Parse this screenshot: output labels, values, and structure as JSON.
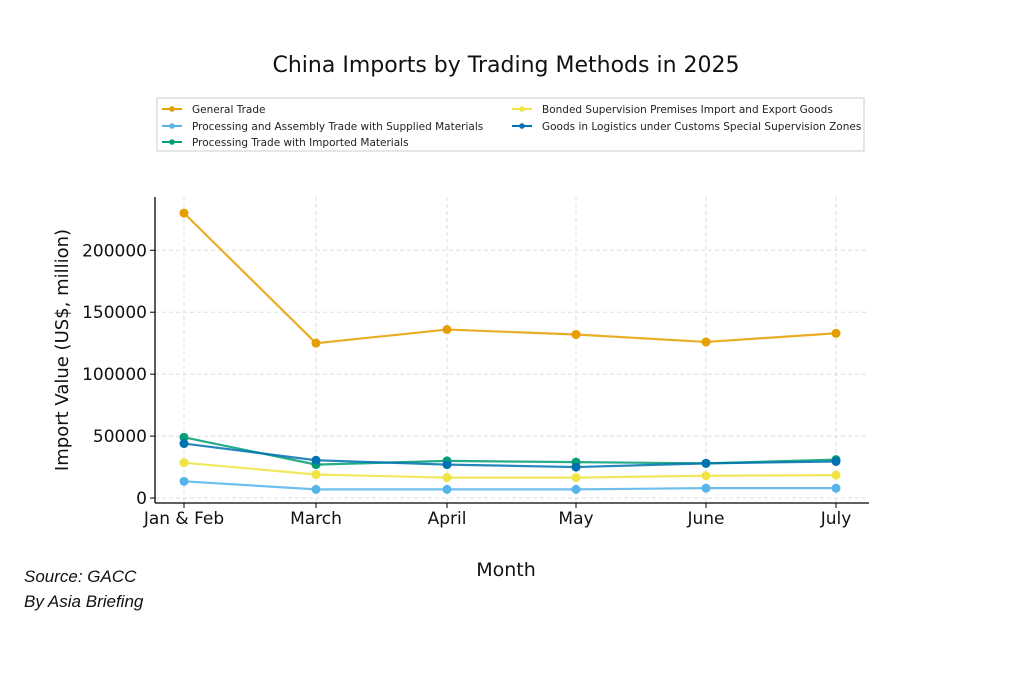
{
  "chart_data": {
    "type": "line",
    "title": "China Imports by Trading Methods in 2025",
    "xlabel": "Month",
    "ylabel": "Import Value (US$, million)",
    "categories": [
      "Jan & Feb",
      "March",
      "April",
      "May",
      "June",
      "July"
    ],
    "yticks": [
      0,
      50000,
      100000,
      150000,
      200000
    ],
    "ylim": [
      -4000,
      243000
    ],
    "grid": true,
    "legend_position": "top",
    "series": [
      {
        "name": "General Trade",
        "color": "#E69F00",
        "values": [
          230000,
          125000,
          136000,
          132000,
          126000,
          133000
        ]
      },
      {
        "name": "Processing and Assembly Trade with Supplied Materials",
        "color": "#56B4E9",
        "values": [
          13500,
          7000,
          7000,
          7000,
          8000,
          8000
        ]
      },
      {
        "name": "Processing Trade with Imported Materials",
        "color": "#009E73",
        "values": [
          49000,
          27000,
          30000,
          29000,
          28000,
          31000
        ]
      },
      {
        "name": "Bonded Supervision Premises Import and Export Goods",
        "color": "#F0E442",
        "values": [
          28500,
          19000,
          16500,
          16500,
          18000,
          18500
        ]
      },
      {
        "name": "Goods in Logistics under Customs Special Supervision Zones",
        "color": "#0072B2",
        "values": [
          44000,
          30500,
          27000,
          25000,
          28000,
          29500
        ]
      }
    ]
  },
  "source": "Source: GACC",
  "credit": "By Asia Briefing"
}
